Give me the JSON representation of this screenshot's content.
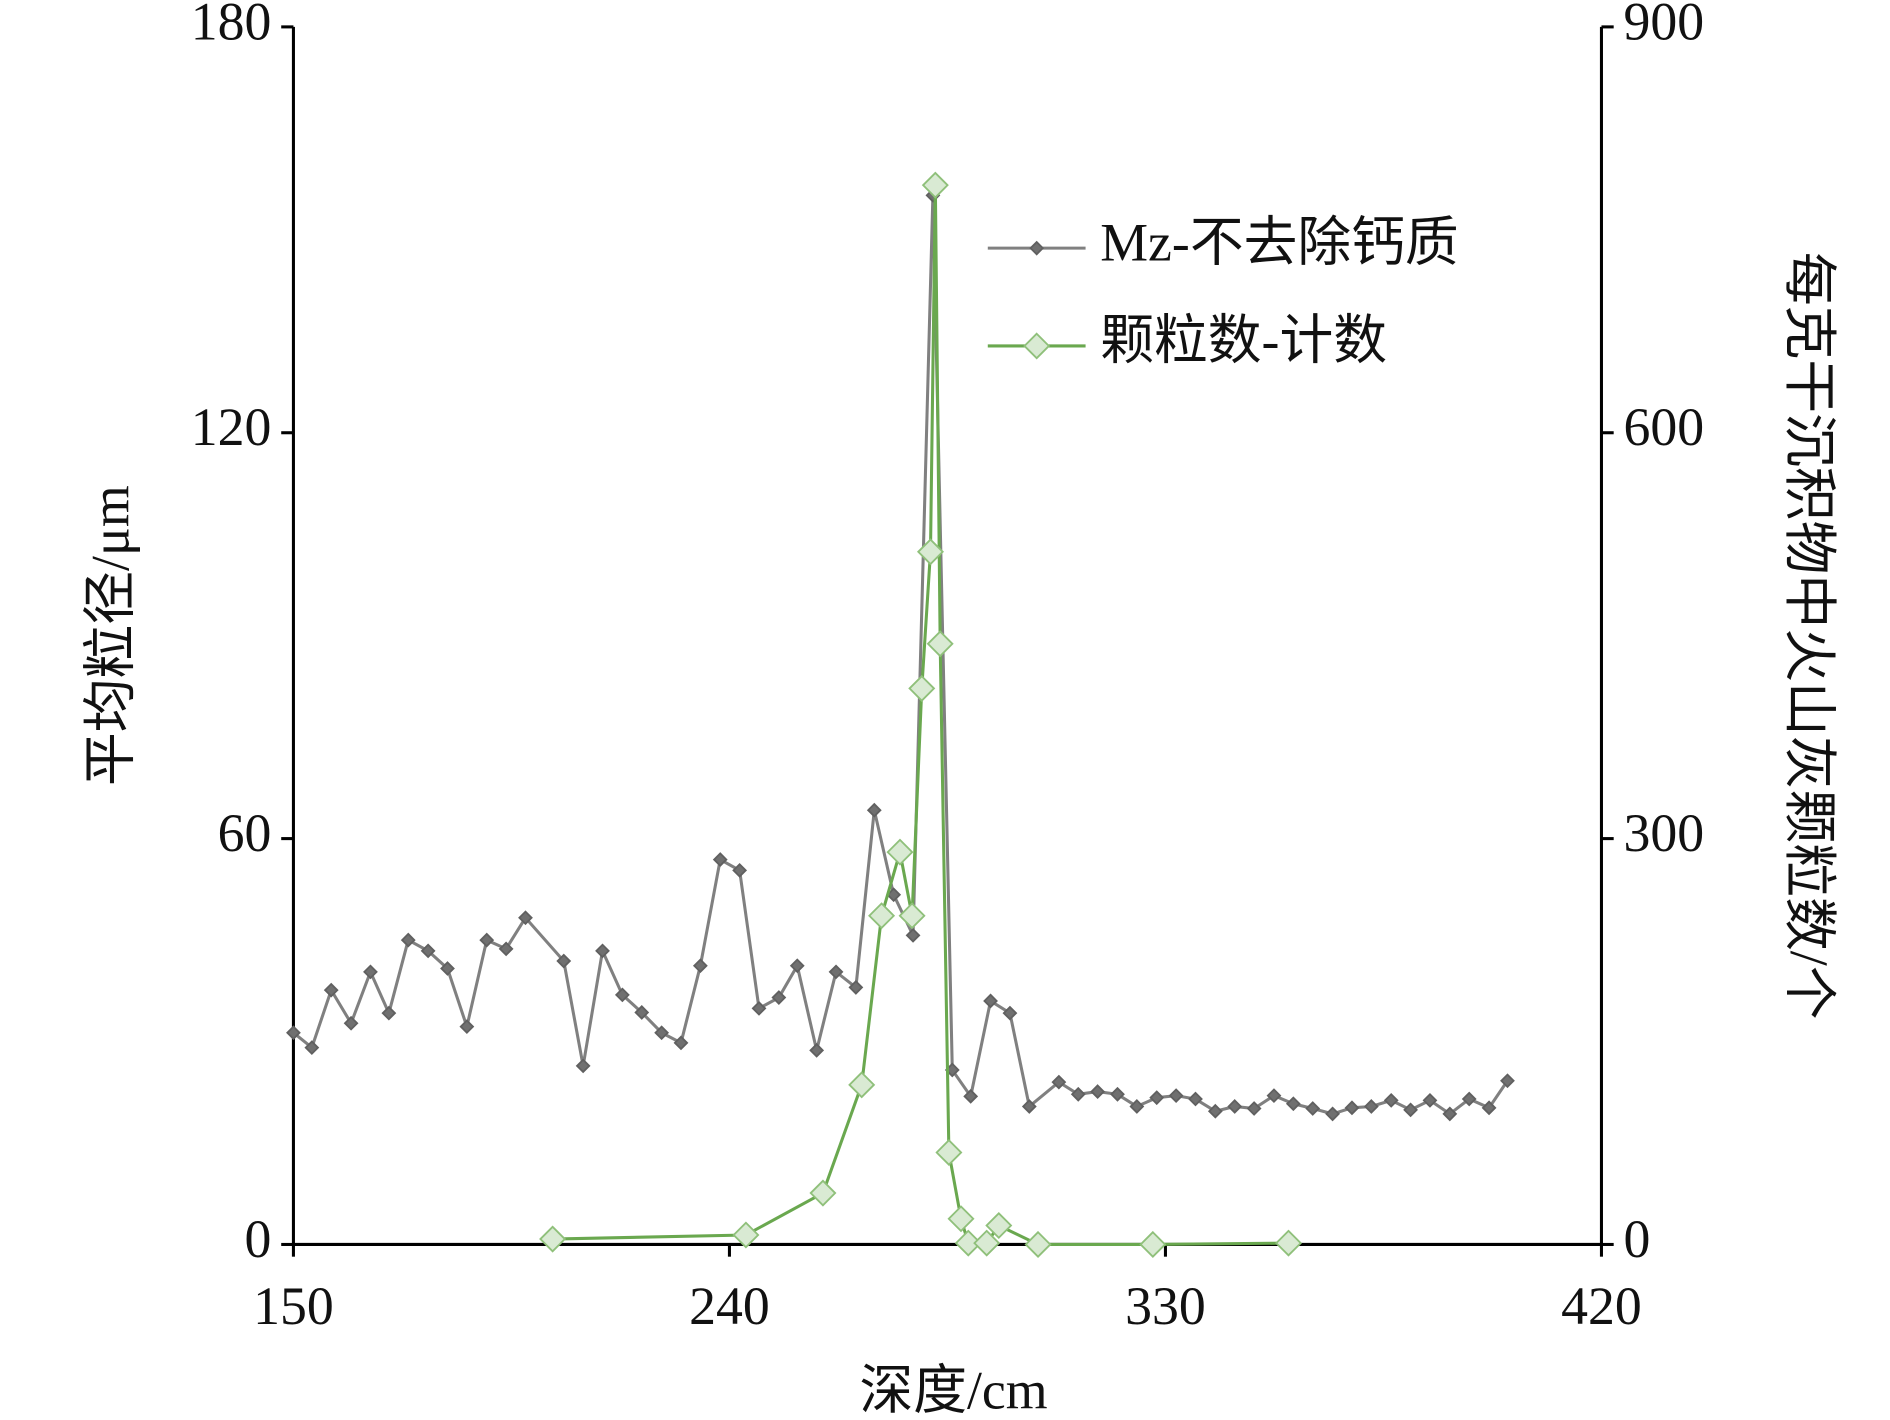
{
  "chart_data": {
    "type": "line",
    "xlabel": "深度/cm",
    "ylabel": "平均粒径/μm",
    "y2label": "每克干沉积物中火山灰颗粒数/个",
    "xlim": [
      150,
      420
    ],
    "xticks": [
      150,
      240,
      330,
      420
    ],
    "ylim": [
      0,
      180
    ],
    "yticks": [
      0,
      60,
      120,
      180
    ],
    "y2lim": [
      0,
      900
    ],
    "y2ticks": [
      0,
      300,
      600,
      900
    ],
    "legend": "upper right",
    "series": [
      {
        "name": "Mz-不去除钙质",
        "color": "#808080",
        "axis": "y",
        "x": [
          150,
          153.8,
          157.8,
          161.9,
          165.9,
          169.7,
          173.7,
          177.8,
          181.8,
          185.8,
          189.9,
          193.9,
          197.9,
          205.8,
          209.8,
          213.8,
          217.9,
          221.9,
          226,
          230,
          234,
          238.1,
          242.1,
          246.1,
          250.2,
          254,
          258,
          262,
          266.1,
          269.9,
          273.9,
          277.9,
          282,
          286,
          289.8,
          293.9,
          297.9,
          301.9,
          308,
          312,
          316,
          320.1,
          324.1,
          328.2,
          332.2,
          336.2,
          340.3,
          344.3,
          348.3,
          352.4,
          356.4,
          360.4,
          364.5,
          368.5,
          372.5,
          376.6,
          380.6,
          384.6,
          388.7,
          392.7,
          396.8,
          400.6
        ],
        "values": [
          31.3,
          29.1,
          37.6,
          32.7,
          40.3,
          34.2,
          45,
          43.4,
          40.8,
          32.2,
          45,
          43.7,
          48.3,
          41.9,
          26.4,
          43.4,
          36.9,
          34.3,
          31.3,
          29.8,
          41.2,
          56.9,
          55.3,
          34.9,
          36.5,
          41.2,
          28.7,
          40.3,
          38,
          64.2,
          51.7,
          45.7,
          155.1,
          25.8,
          21.9,
          36,
          34.2,
          20.4,
          24,
          22.2,
          22.6,
          22.2,
          20.4,
          21.7,
          22,
          21.5,
          19.7,
          20.4,
          20.1,
          22,
          20.8,
          20.1,
          19.3,
          20.2,
          20.4,
          21.3,
          19.9,
          21.3,
          19.3,
          21.5,
          20.2,
          24.2
        ]
      },
      {
        "name": "颗粒数-计数",
        "color": "#6aa84f",
        "axis": "y2",
        "x": [
          203.5,
          243.4,
          259.3,
          267.3,
          271.4,
          275.2,
          277.7,
          279.7,
          281.5,
          282.5,
          283.5,
          285.3,
          287.8,
          289.3,
          293.1,
          295.6,
          303.7,
          327.4,
          355.4
        ],
        "values": [
          4,
          7,
          38,
          118,
          243,
          290,
          243,
          411,
          512,
          783,
          444,
          68,
          19,
          1,
          1,
          14,
          0,
          0,
          1
        ]
      }
    ]
  }
}
